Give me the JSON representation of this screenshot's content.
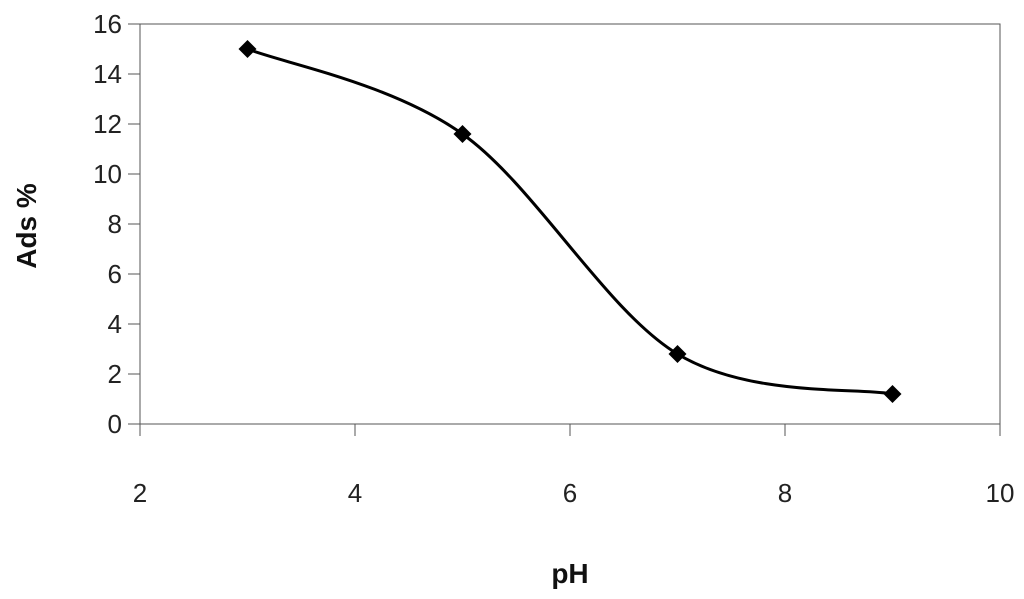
{
  "chart_data": {
    "type": "scatter",
    "title": "",
    "xlabel": "pH",
    "ylabel": "Ads %",
    "xlim": [
      2,
      10
    ],
    "ylim": [
      0,
      16
    ],
    "x_ticks": [
      2,
      4,
      6,
      8,
      10
    ],
    "y_ticks": [
      0,
      2,
      4,
      6,
      8,
      10,
      12,
      14,
      16
    ],
    "grid": false,
    "smoothed_line": true,
    "marker": "diamond",
    "series": [
      {
        "x": [
          3,
          5,
          7,
          9
        ],
        "y": [
          15.0,
          11.6,
          2.8,
          1.2
        ],
        "color": "#000000"
      }
    ]
  }
}
